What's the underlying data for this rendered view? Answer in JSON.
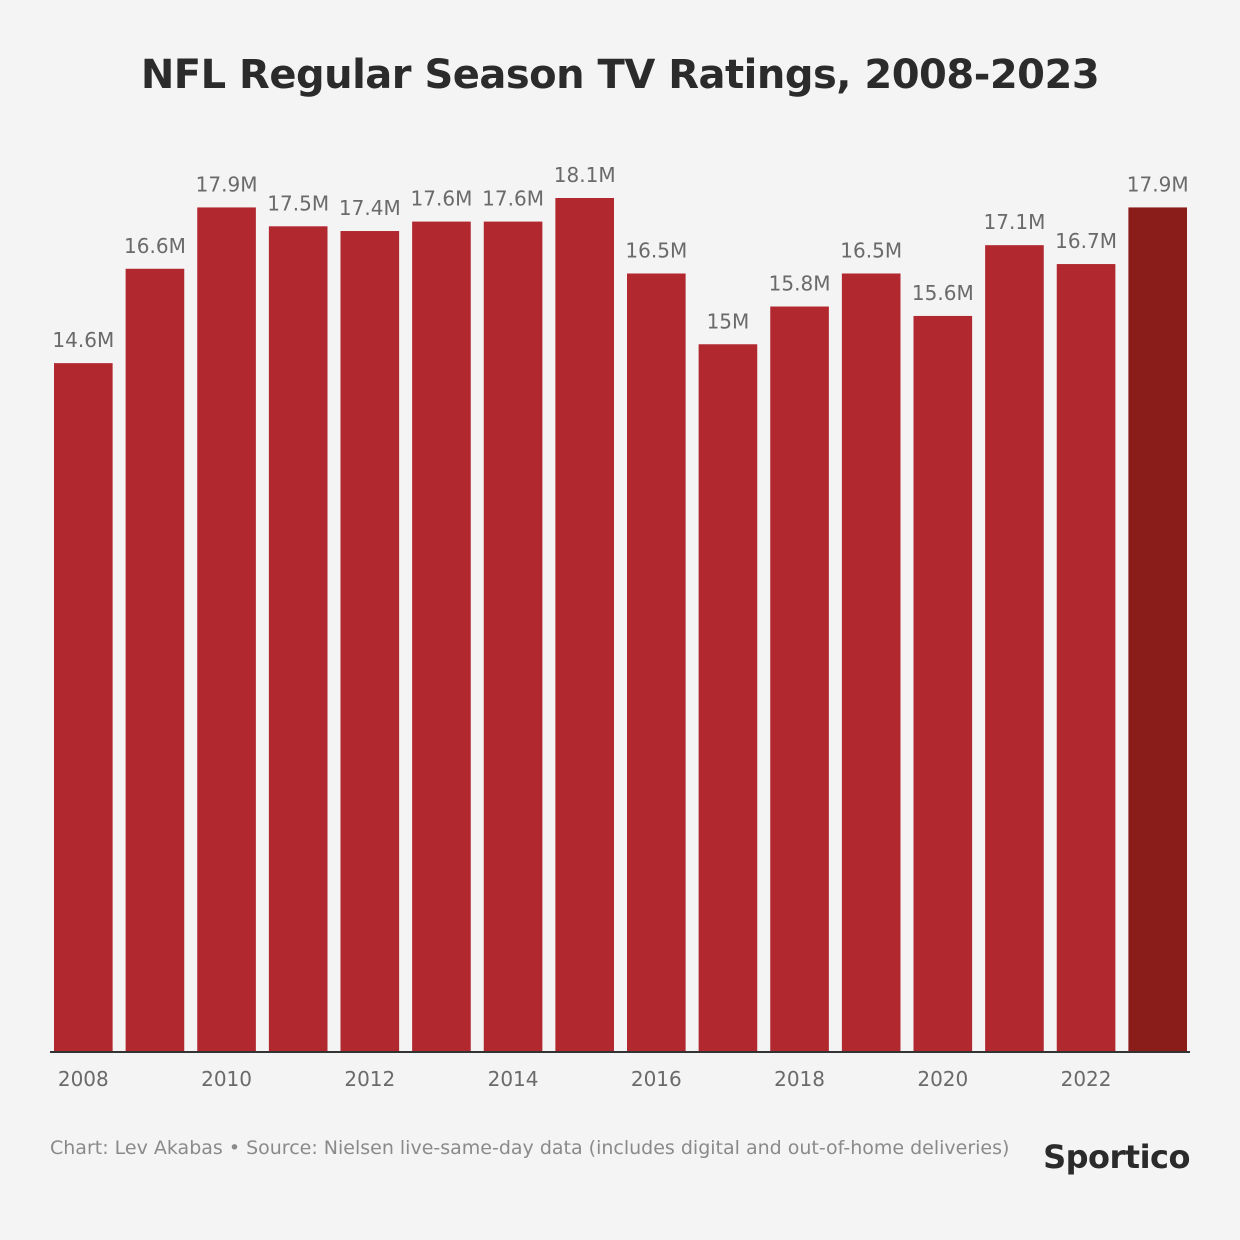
{
  "chart_data": {
    "type": "bar",
    "title": "NFL Regular Season TV Ratings, 2008-2023",
    "xlabel": "",
    "ylabel": "",
    "categories": [
      "2008",
      "2009",
      "2010",
      "2011",
      "2012",
      "2013",
      "2014",
      "2015",
      "2016",
      "2017",
      "2018",
      "2019",
      "2020",
      "2021",
      "2022",
      "2023"
    ],
    "values": [
      14.6,
      16.6,
      17.9,
      17.5,
      17.4,
      17.6,
      17.6,
      18.1,
      16.5,
      15.0,
      15.8,
      16.5,
      15.6,
      17.1,
      16.7,
      17.9
    ],
    "value_labels": [
      "14.6M",
      "16.6M",
      "17.9M",
      "17.5M",
      "17.4M",
      "17.6M",
      "17.6M",
      "18.1M",
      "16.5M",
      "15M",
      "15.8M",
      "16.5M",
      "15.6M",
      "17.1M",
      "16.7M",
      "17.9M"
    ],
    "tick_labels": [
      "2008",
      "2010",
      "2012",
      "2014",
      "2016",
      "2018",
      "2020",
      "2022"
    ],
    "ylim": [
      0,
      18.1
    ],
    "grid": false,
    "colors": {
      "bar": "#b1282f",
      "highlight": "#8a1c1a",
      "highlight_index": 15
    }
  },
  "footer": {
    "source": "Chart: Lev Akabas • Source: Nielsen live-same-day data (includes digital and out-of-home deliveries)",
    "brand": "Sportico"
  }
}
